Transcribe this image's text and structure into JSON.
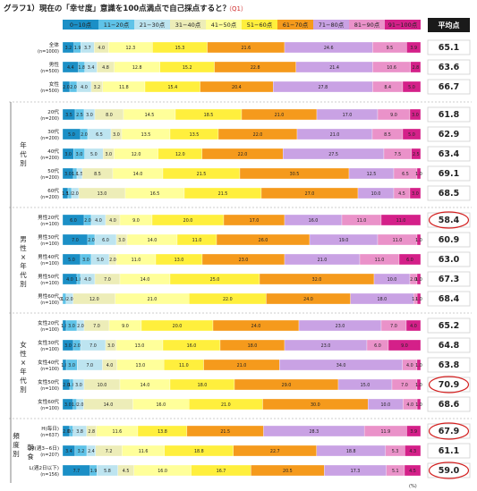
{
  "chart_data": {
    "type": "bar",
    "stacked": "100%",
    "orientation": "horizontal",
    "title": "グラフ1）現在の「幸せ度」意識を100点満点で自己採点すると？",
    "question_code": "（Q1）",
    "unit": "(%)",
    "average_header": "平均点",
    "legend": [
      "0−10点",
      "11−20点",
      "21−30点",
      "31−40点",
      "41−50点",
      "51−60点",
      "61−70点",
      "71−80点",
      "81−90点",
      "91−100点"
    ],
    "colors": [
      "#1b8fc6",
      "#5fc3e8",
      "#bde4f0",
      "#ededb8",
      "#ffff9a",
      "#ffef3d",
      "#f59a1c",
      "#c9a2e4",
      "#ea92c9",
      "#d42089"
    ],
    "group_labels": {
      "age": "年代別",
      "gender_age_m": "男性×年代別",
      "gender_age_f": "女性×年代別",
      "breakfast_1": "朝食",
      "breakfast_2": "頻度別"
    },
    "rows": [
      {
        "label": "全体",
        "n": "(n=1000)",
        "values": [
          3.2,
          1.9,
          3.7,
          4.0,
          12.3,
          15.3,
          21.6,
          24.6,
          9.5,
          3.9
        ],
        "avg": "65.1",
        "circled": false
      },
      {
        "label": "男性",
        "n": "(n=500)",
        "values": [
          4.4,
          1.8,
          3.4,
          4.8,
          12.8,
          15.2,
          22.8,
          21.4,
          10.6,
          2.8
        ],
        "avg": "63.6",
        "circled": false
      },
      {
        "label": "女性",
        "n": "(n=500)",
        "values": [
          2.0,
          2.0,
          4.0,
          3.2,
          11.8,
          15.4,
          20.4,
          27.8,
          8.4,
          5.0
        ],
        "avg": "66.7",
        "circled": false
      },
      {
        "label": "20代",
        "n": "(n=200)",
        "values": [
          3.5,
          2.5,
          3.0,
          8.0,
          14.5,
          18.5,
          21.0,
          17.0,
          9.0,
          3.0
        ],
        "avg": "61.8",
        "circled": false
      },
      {
        "label": "30代",
        "n": "(n=200)",
        "values": [
          5.0,
          2.0,
          6.5,
          3.0,
          13.5,
          13.5,
          22.0,
          21.0,
          8.5,
          5.0
        ],
        "avg": "62.9",
        "circled": false
      },
      {
        "label": "40代",
        "n": "(n=200)",
        "values": [
          3.0,
          3.0,
          5.0,
          3.0,
          12.0,
          12.0,
          22.0,
          27.5,
          7.5,
          2.5
        ],
        "avg": "63.4",
        "circled": false
      },
      {
        "label": "50代",
        "n": "(n=200)",
        "values": [
          3.0,
          1.0,
          1.5,
          8.5,
          14.0,
          21.5,
          30.5,
          12.5,
          6.5,
          1.0
        ],
        "avg": "69.1",
        "circled": false
      },
      {
        "label": "60代",
        "n": "(n=200)",
        "values": [
          1.5,
          1.0,
          2.0,
          13.0,
          16.5,
          21.5,
          27.0,
          10.0,
          4.5,
          3.0
        ],
        "avg": "68.5",
        "circled": false
      },
      {
        "label": "男性20代",
        "n": "(n=100)",
        "values": [
          6.0,
          2.0,
          4.0,
          4.0,
          9.0,
          20.0,
          17.0,
          16.0,
          11.0,
          11.0
        ],
        "avg": "58.4",
        "circled": true
      },
      {
        "label": "男性30代",
        "n": "(n=100)",
        "values": [
          7.0,
          2.0,
          6.0,
          3.0,
          14.0,
          11.0,
          26.0,
          19.0,
          11.0,
          1.0
        ],
        "avg": "60.9",
        "circled": false
      },
      {
        "label": "男性40代",
        "n": "(n=100)",
        "values": [
          5.0,
          3.0,
          5.0,
          2.0,
          11.0,
          13.0,
          23.0,
          21.0,
          11.0,
          6.0
        ],
        "avg": "63.0",
        "circled": false
      },
      {
        "label": "男性50代",
        "n": "(n=100)",
        "values": [
          4.0,
          1.0,
          4.0,
          7.0,
          14.0,
          25.0,
          32.0,
          10.0,
          2.0,
          1.0
        ],
        "avg": "67.3",
        "circled": false
      },
      {
        "label": "男性60代",
        "n": "(n=100)",
        "values": [
          0.0,
          1.0,
          2.0,
          12.0,
          21.0,
          22.0,
          24.0,
          18.0,
          1.0,
          1.0
        ],
        "avg": "68.4",
        "circled": false
      },
      {
        "label": "女性20代",
        "n": "(n=100)",
        "values": [
          1.0,
          3.0,
          2.0,
          7.0,
          9.0,
          20.0,
          24.0,
          23.0,
          7.0,
          4.0
        ],
        "avg": "65.2",
        "circled": false
      },
      {
        "label": "女性30代",
        "n": "(n=100)",
        "values": [
          3.0,
          2.0,
          7.0,
          3.0,
          13.0,
          16.0,
          18.0,
          23.0,
          6.0,
          9.0
        ],
        "avg": "64.8",
        "circled": false
      },
      {
        "label": "女性40代",
        "n": "(n=100)",
        "values": [
          1.0,
          3.0,
          7.0,
          4.0,
          13.0,
          11.0,
          21.0,
          34.0,
          4.0,
          1.0
        ],
        "avg": "63.8",
        "circled": false
      },
      {
        "label": "女性50代",
        "n": "(n=100)",
        "values": [
          2.0,
          1.0,
          3.0,
          10.0,
          14.0,
          18.0,
          29.0,
          15.0,
          7.0,
          1.0
        ],
        "avg": "70.9",
        "circled": true
      },
      {
        "label": "女性60代",
        "n": "(n=100)",
        "values": [
          3.0,
          1.0,
          2.0,
          14.0,
          16.0,
          21.0,
          30.0,
          10.0,
          4.0,
          1.0
        ],
        "avg": "68.6",
        "circled": false
      },
      {
        "label": "H(毎日)",
        "n": "(n=637)",
        "values": [
          2.0,
          0.9,
          3.8,
          2.8,
          11.6,
          13.8,
          21.5,
          28.3,
          11.9,
          3.9
        ],
        "avg": "67.9",
        "circled": true
      },
      {
        "label": "M(週3−6日)",
        "n": "(n=207)",
        "values": [
          3.4,
          3.2,
          2.4,
          7.2,
          11.6,
          18.8,
          22.7,
          18.8,
          5.3,
          4.3
        ],
        "avg": "61.1",
        "circled": false
      },
      {
        "label": "L(週2日以下)",
        "n": "(n=156)",
        "values": [
          7.7,
          1.9,
          5.8,
          4.5,
          16.0,
          16.7,
          20.5,
          17.3,
          5.1,
          4.5
        ],
        "avg": "59.0",
        "circled": true
      }
    ]
  }
}
